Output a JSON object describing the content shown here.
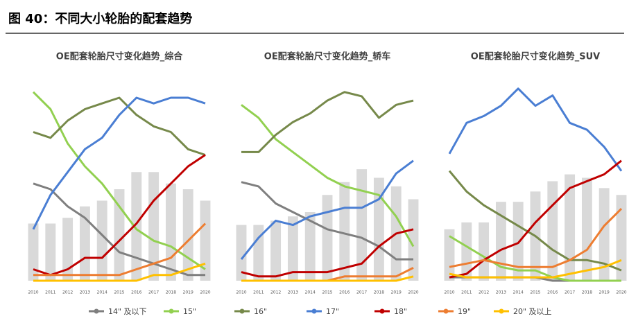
{
  "header": {
    "title": "图 40：不同大小轮胎的配套趋势"
  },
  "chart_data": [
    {
      "type": "line",
      "title": "OE配套轮胎尺寸变化趋势_综合",
      "categories": [
        "2010",
        "2011",
        "2012",
        "2013",
        "2014",
        "2015",
        "2016",
        "2017",
        "2018",
        "2019",
        "2020"
      ],
      "ylim": [
        0,
        36
      ],
      "legend": "bottom",
      "bar_color": "#d9d9d9",
      "bar_values": [
        10,
        10,
        11,
        13,
        14,
        16,
        19,
        19,
        17,
        16,
        14
      ],
      "series": [
        {
          "name": "14\" 及以下",
          "color": "#7f7f7f",
          "values": [
            17,
            16,
            13,
            11,
            8,
            5,
            4,
            3,
            2,
            1,
            1
          ]
        },
        {
          "name": "15\"",
          "color": "#92d050",
          "values": [
            33,
            30,
            24,
            20,
            17,
            13,
            9,
            7,
            6,
            4,
            2
          ]
        },
        {
          "name": "16\"",
          "color": "#76894a",
          "values": [
            26,
            25,
            28,
            30,
            31,
            32,
            29,
            27,
            26,
            23,
            22
          ]
        },
        {
          "name": "17\"",
          "color": "#4a7ed3",
          "values": [
            9,
            15,
            19,
            23,
            25,
            29,
            32,
            31,
            32,
            32,
            31
          ]
        },
        {
          "name": "18\"",
          "color": "#c00000",
          "values": [
            2,
            1,
            2,
            4,
            4,
            7,
            10,
            14,
            17,
            20,
            22
          ]
        },
        {
          "name": "19\"",
          "color": "#ed7d31",
          "values": [
            1,
            1,
            1,
            1,
            1,
            1,
            2,
            3,
            4,
            7,
            10
          ]
        },
        {
          "name": "20\" 及以上",
          "color": "#ffc000",
          "values": [
            0,
            0,
            0,
            0,
            0,
            0,
            0,
            1,
            1,
            2,
            3
          ]
        }
      ]
    },
    {
      "type": "line",
      "title": "OE配套轮胎尺寸变化趋势_轿车",
      "categories": [
        "2010",
        "2011",
        "2012",
        "2013",
        "2014",
        "2015",
        "2016",
        "2017",
        "2018",
        "2019",
        "2020"
      ],
      "ylim": [
        0,
        48
      ],
      "bar_color": "#d9d9d9",
      "bar_values": [
        13,
        13,
        14,
        15,
        16,
        20,
        23,
        26,
        24,
        22,
        19
      ],
      "series": [
        {
          "name": "14\" 及以下",
          "color": "#7f7f7f",
          "values": [
            23,
            22,
            18,
            16,
            14,
            12,
            11,
            10,
            8,
            5,
            5
          ]
        },
        {
          "name": "15\"",
          "color": "#92d050",
          "values": [
            41,
            38,
            33,
            30,
            27,
            24,
            22,
            21,
            20,
            15,
            8
          ]
        },
        {
          "name": "16\"",
          "color": "#76894a",
          "values": [
            30,
            30,
            34,
            37,
            39,
            42,
            44,
            43,
            38,
            41,
            42
          ]
        },
        {
          "name": "17\"",
          "color": "#4a7ed3",
          "values": [
            5,
            10,
            14,
            13,
            15,
            16,
            17,
            17,
            19,
            25,
            28
          ]
        },
        {
          "name": "18\"",
          "color": "#c00000",
          "values": [
            2,
            1,
            1,
            2,
            2,
            2,
            3,
            4,
            8,
            11,
            12
          ]
        },
        {
          "name": "19\"",
          "color": "#ed7d31",
          "values": [
            0,
            0,
            0,
            0,
            0,
            0,
            1,
            1,
            1,
            1,
            3
          ]
        },
        {
          "name": "20\" 及以上",
          "color": "#ffc000",
          "values": [
            0,
            0,
            0,
            0,
            0,
            0,
            0,
            0,
            0,
            0,
            1
          ]
        }
      ]
    },
    {
      "type": "line",
      "title": "OE配套轮胎尺寸变化趋势_SUV",
      "categories": [
        "2010",
        "2011",
        "2012",
        "2013",
        "2014",
        "2015",
        "2016",
        "2017",
        "2018",
        "2019",
        "2020"
      ],
      "ylim": [
        0,
        60
      ],
      "bar_color": "#d9d9d9",
      "bar_values": [
        15,
        17,
        17,
        23,
        23,
        26,
        29,
        31,
        30,
        27,
        25
      ],
      "series": [
        {
          "name": "14\" 及以下",
          "color": "#7f7f7f",
          "values": [
            1,
            1,
            1,
            1,
            1,
            1,
            0,
            0,
            0,
            0,
            0
          ]
        },
        {
          "name": "15\"",
          "color": "#92d050",
          "values": [
            13,
            10,
            7,
            4,
            3,
            3,
            1,
            0,
            0,
            0,
            0
          ]
        },
        {
          "name": "16\"",
          "color": "#76894a",
          "values": [
            32,
            26,
            22,
            19,
            16,
            13,
            9,
            6,
            6,
            5,
            3
          ]
        },
        {
          "name": "17\"",
          "color": "#4a7ed3",
          "values": [
            37,
            46,
            48,
            51,
            56,
            51,
            54,
            46,
            44,
            39,
            32
          ]
        },
        {
          "name": "18\"",
          "color": "#c00000",
          "values": [
            1,
            2,
            6,
            9,
            11,
            17,
            22,
            27,
            29,
            31,
            35
          ]
        },
        {
          "name": "19\"",
          "color": "#ed7d31",
          "values": [
            4,
            5,
            6,
            5,
            4,
            4,
            4,
            6,
            9,
            16,
            21
          ]
        },
        {
          "name": "20\" 及以上",
          "color": "#ffc000",
          "values": [
            2,
            1,
            1,
            1,
            1,
            1,
            1,
            2,
            3,
            4,
            6
          ]
        }
      ]
    }
  ]
}
